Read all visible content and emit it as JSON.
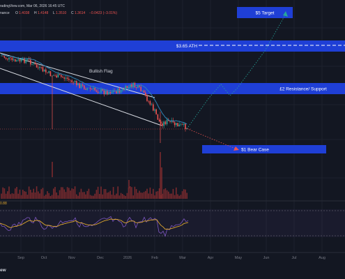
{
  "header": {
    "source_fragment": "radingView.com, Mar 06, 2026 16:45 UTC",
    "symbol_fragment": "nance",
    "ohlc": [
      {
        "label": "O",
        "value": "1.4038"
      },
      {
        "label": "H",
        "value": "1.4148"
      },
      {
        "label": "L",
        "value": "1.3510"
      },
      {
        "label": "C",
        "value": "1.3614"
      }
    ],
    "change": "−0.0423 (−3.01%)"
  },
  "indicator": {
    "value": "0.88"
  },
  "footer": {
    "brand_fragment": "ew"
  },
  "colors": {
    "background": "#131722",
    "zone_fill": "#1f3fd6",
    "zone_text": "#ffffff",
    "candle_up": "#26a69a",
    "candle_down": "#ef5350",
    "moving_average": "#2f82b4",
    "channel_lines": "#d9dce3",
    "projection_up": "#26a69a",
    "projection_down": "#ef5350",
    "volume_bars": "#7a2a2e",
    "rsi_line": "#7e57c2",
    "rsi_signal": "#e0a82e",
    "ath_dashed": "#ffffff",
    "axis_text": "#787b86",
    "grid": "#1e222d"
  },
  "chart_data": {
    "type": "candlestick",
    "x_axis_ticks": [
      "Sep",
      "Oct",
      "Nov",
      "Dec",
      "2026",
      "Feb",
      "Mar",
      "Apr",
      "May",
      "Jun",
      "Jul",
      "Aug"
    ],
    "price_zones": [
      {
        "label": "$5 Target",
        "kind": "target"
      },
      {
        "label": "$3.65 ATH",
        "kind": "all-time-high"
      },
      {
        "label": "£2 Resistance/ Support",
        "kind": "resistance-support"
      },
      {
        "label": "$1 Bear Case",
        "kind": "bear-case"
      }
    ],
    "annotations": [
      {
        "text": "Bullish Flag",
        "kind": "pattern"
      }
    ],
    "projections": [
      {
        "direction": "up",
        "style": "dotted",
        "end": "$5 Target"
      },
      {
        "direction": "down",
        "style": "dotted",
        "end": "$1 Bear Case"
      }
    ],
    "panes": [
      "price",
      "volume",
      "oscillator"
    ],
    "grid": true
  }
}
